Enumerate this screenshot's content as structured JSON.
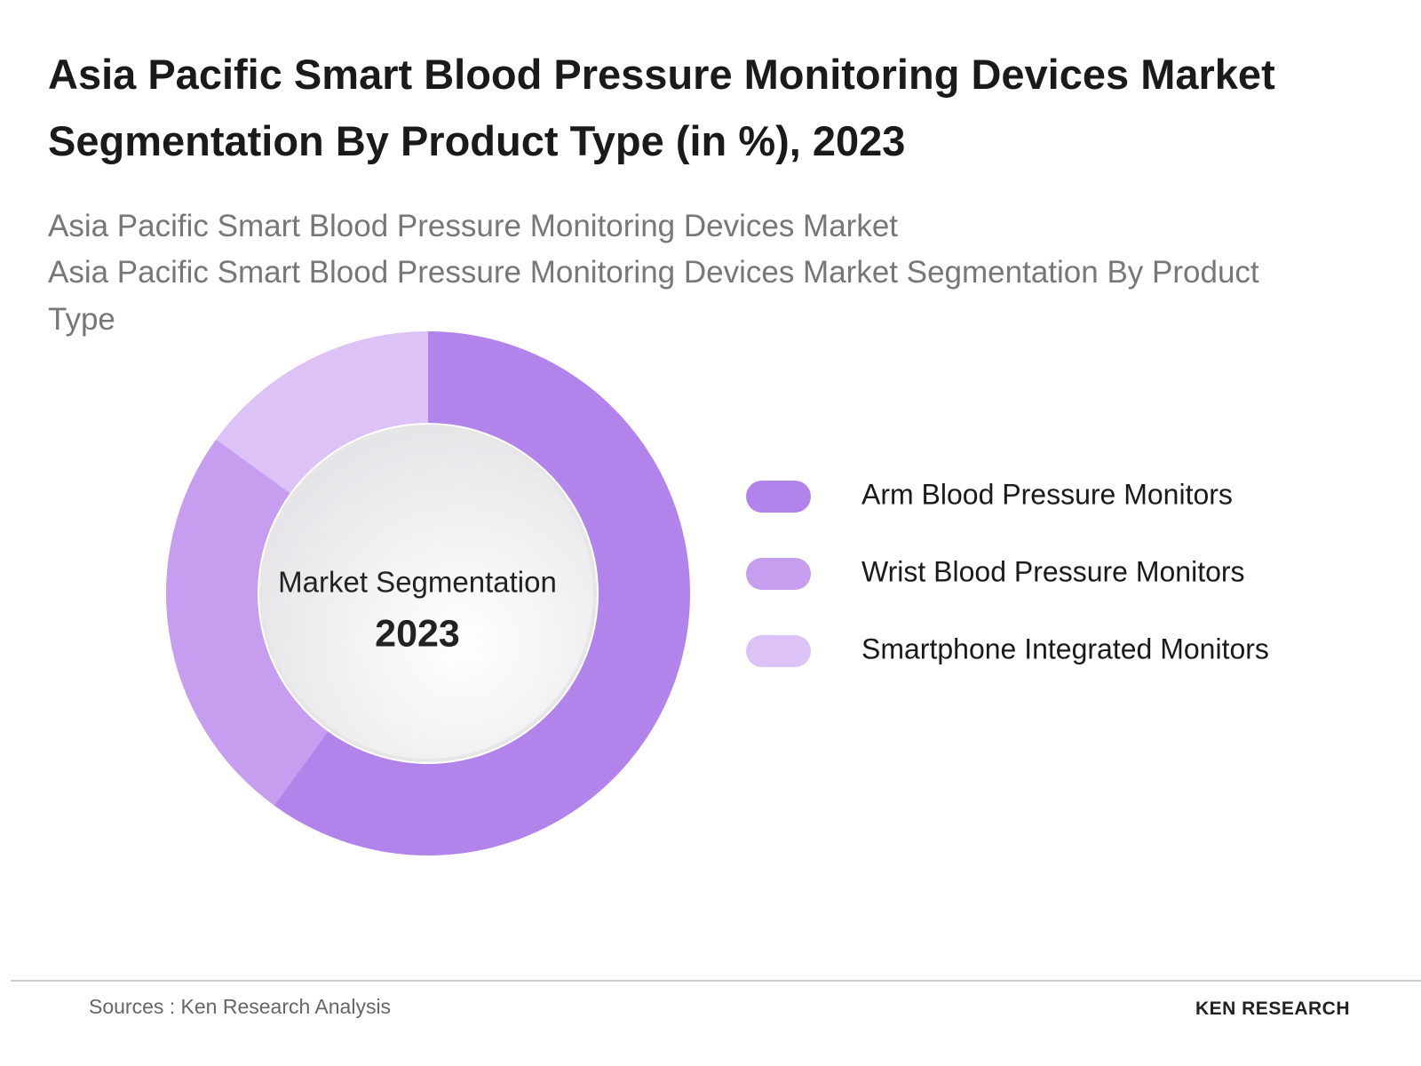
{
  "chart_data": {
    "type": "donut",
    "title": "Asia Pacific Smart Blood Pressure Monitoring Devices Market Segmentation By Product Type (in %), 2023",
    "subtitle": [
      "Asia Pacific Smart Blood Pressure Monitoring Devices Market",
      "Asia Pacific Smart Blood Pressure Monitoring Devices Market Segmentation By Product Type"
    ],
    "center_label": "Market Segmentation",
    "center_year": "2023",
    "categories": [
      "Arm Blood Pressure Monitors",
      "Wrist Blood Pressure Monitors",
      "Smartphone Integrated Monitors"
    ],
    "values": [
      60,
      25,
      15
    ],
    "colors": [
      "#b383ec",
      "#c79df0",
      "#dcc2f7"
    ]
  },
  "footer": {
    "source": "Sources : Ken Research Analysis",
    "logo": "KEN RESEARCH"
  }
}
